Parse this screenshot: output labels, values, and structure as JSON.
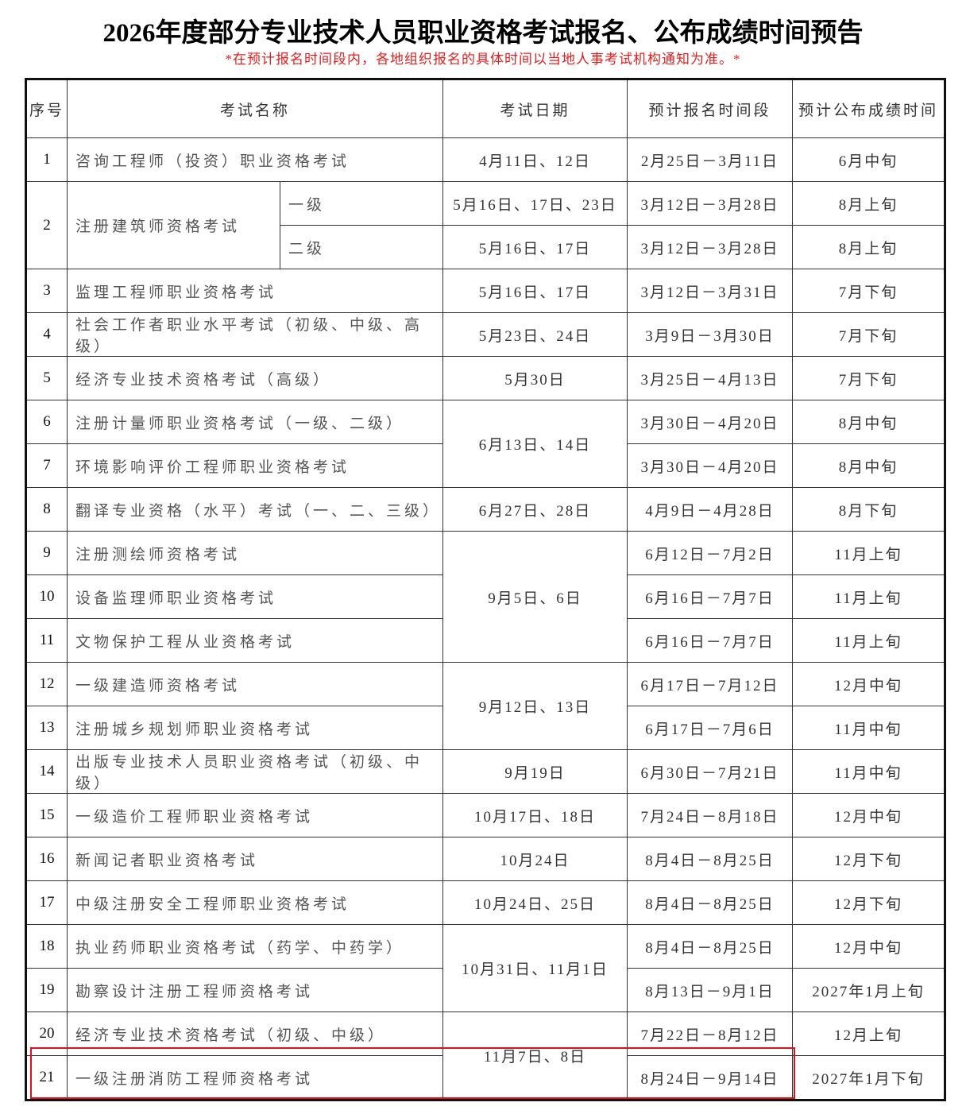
{
  "title": "2026年度部分专业技术人员职业资格考试报名、公布成绩时间预告",
  "note": "*在预计报名时间段内，各地组织报名的具体时间以当地人事考试机构通知为准。*",
  "headers": [
    "序号",
    "考试名称",
    "考试日期",
    "预计报名时间段",
    "预计公布成绩时间"
  ],
  "highlight_color": "#e0101a",
  "rows": [
    {
      "no": "1",
      "name": "咨询工程师（投资）职业资格考试",
      "date": "4月11日、12日",
      "reg": "2月25日－3月11日",
      "res": "6月中旬"
    },
    {
      "no": "2",
      "name": "注册建筑师资格考试",
      "levels": [
        {
          "level": "一级",
          "date": "5月16日、17日、23日",
          "reg": "3月12日－3月28日",
          "res": "8月上旬"
        },
        {
          "level": "二级",
          "date": "5月16日、17日",
          "reg": "3月12日－3月28日",
          "res": "8月上旬"
        }
      ]
    },
    {
      "no": "3",
      "name": "监理工程师职业资格考试",
      "date": "5月16日、17日",
      "reg": "3月12日－3月31日",
      "res": "7月下旬"
    },
    {
      "no": "4",
      "name": "社会工作者职业水平考试（初级、中级、高级）",
      "date": "5月23日、24日",
      "reg": "3月9日－3月30日",
      "res": "7月下旬"
    },
    {
      "no": "5",
      "name": "经济专业技术资格考试（高级）",
      "date": "5月30日",
      "reg": "3月25日－4月13日",
      "res": "7月下旬"
    },
    {
      "no": "6",
      "name": "注册计量师职业资格考试（一级、二级）",
      "date": "6月13日、14日",
      "reg": "3月30日－4月20日",
      "res": "8月中旬"
    },
    {
      "no": "7",
      "name": "环境影响评价工程师职业资格考试",
      "date": null,
      "reg": "3月30日－4月20日",
      "res": "8月中旬"
    },
    {
      "no": "8",
      "name": "翻译专业资格（水平）考试（一、二、三级）",
      "date": "6月27日、28日",
      "reg": "4月9日－4月28日",
      "res": "8月下旬"
    },
    {
      "no": "9",
      "name": "注册测绘师资格考试",
      "date": "9月5日、6日",
      "reg": "6月12日－7月2日",
      "res": "11月上旬"
    },
    {
      "no": "10",
      "name": "设备监理师职业资格考试",
      "date": null,
      "reg": "6月16日－7月7日",
      "res": "11月上旬"
    },
    {
      "no": "11",
      "name": "文物保护工程从业资格考试",
      "date": null,
      "reg": "6月16日－7月7日",
      "res": "11月上旬"
    },
    {
      "no": "12",
      "name": "一级建造师资格考试",
      "date": "9月12日、13日",
      "reg": "6月17日－7月12日",
      "res": "12月中旬"
    },
    {
      "no": "13",
      "name": "注册城乡规划师职业资格考试",
      "date": null,
      "reg": "6月17日－7月6日",
      "res": "11月中旬"
    },
    {
      "no": "14",
      "name": "出版专业技术人员职业资格考试（初级、中级）",
      "date": "9月19日",
      "reg": "6月30日－7月21日",
      "res": "11月中旬"
    },
    {
      "no": "15",
      "name": "一级造价工程师职业资格考试",
      "date": "10月17日、18日",
      "reg": "7月24日－8月18日",
      "res": "12月中旬"
    },
    {
      "no": "16",
      "name": "新闻记者职业资格考试",
      "date": "10月24日",
      "reg": "8月4日－8月25日",
      "res": "12月下旬"
    },
    {
      "no": "17",
      "name": "中级注册安全工程师职业资格考试",
      "date": "10月24日、25日",
      "reg": "8月4日－8月25日",
      "res": "12月下旬"
    },
    {
      "no": "18",
      "name": "执业药师职业资格考试（药学、中药学）",
      "date": "10月31日、11月1日",
      "reg": "8月4日－8月25日",
      "res": "12月中旬"
    },
    {
      "no": "19",
      "name": "勘察设计注册工程师资格考试",
      "date": null,
      "reg": "8月13日－9月1日",
      "res": "2027年1月上旬"
    },
    {
      "no": "20",
      "name": "经济专业技术资格考试（初级、中级）",
      "date": "11月7日、8日",
      "reg": "7月22日－8月12日",
      "res": "12月上旬"
    },
    {
      "no": "21",
      "name": "一级注册消防工程师资格考试",
      "date": null,
      "reg": "8月24日－9月14日",
      "res": "2027年1月下旬"
    }
  ]
}
